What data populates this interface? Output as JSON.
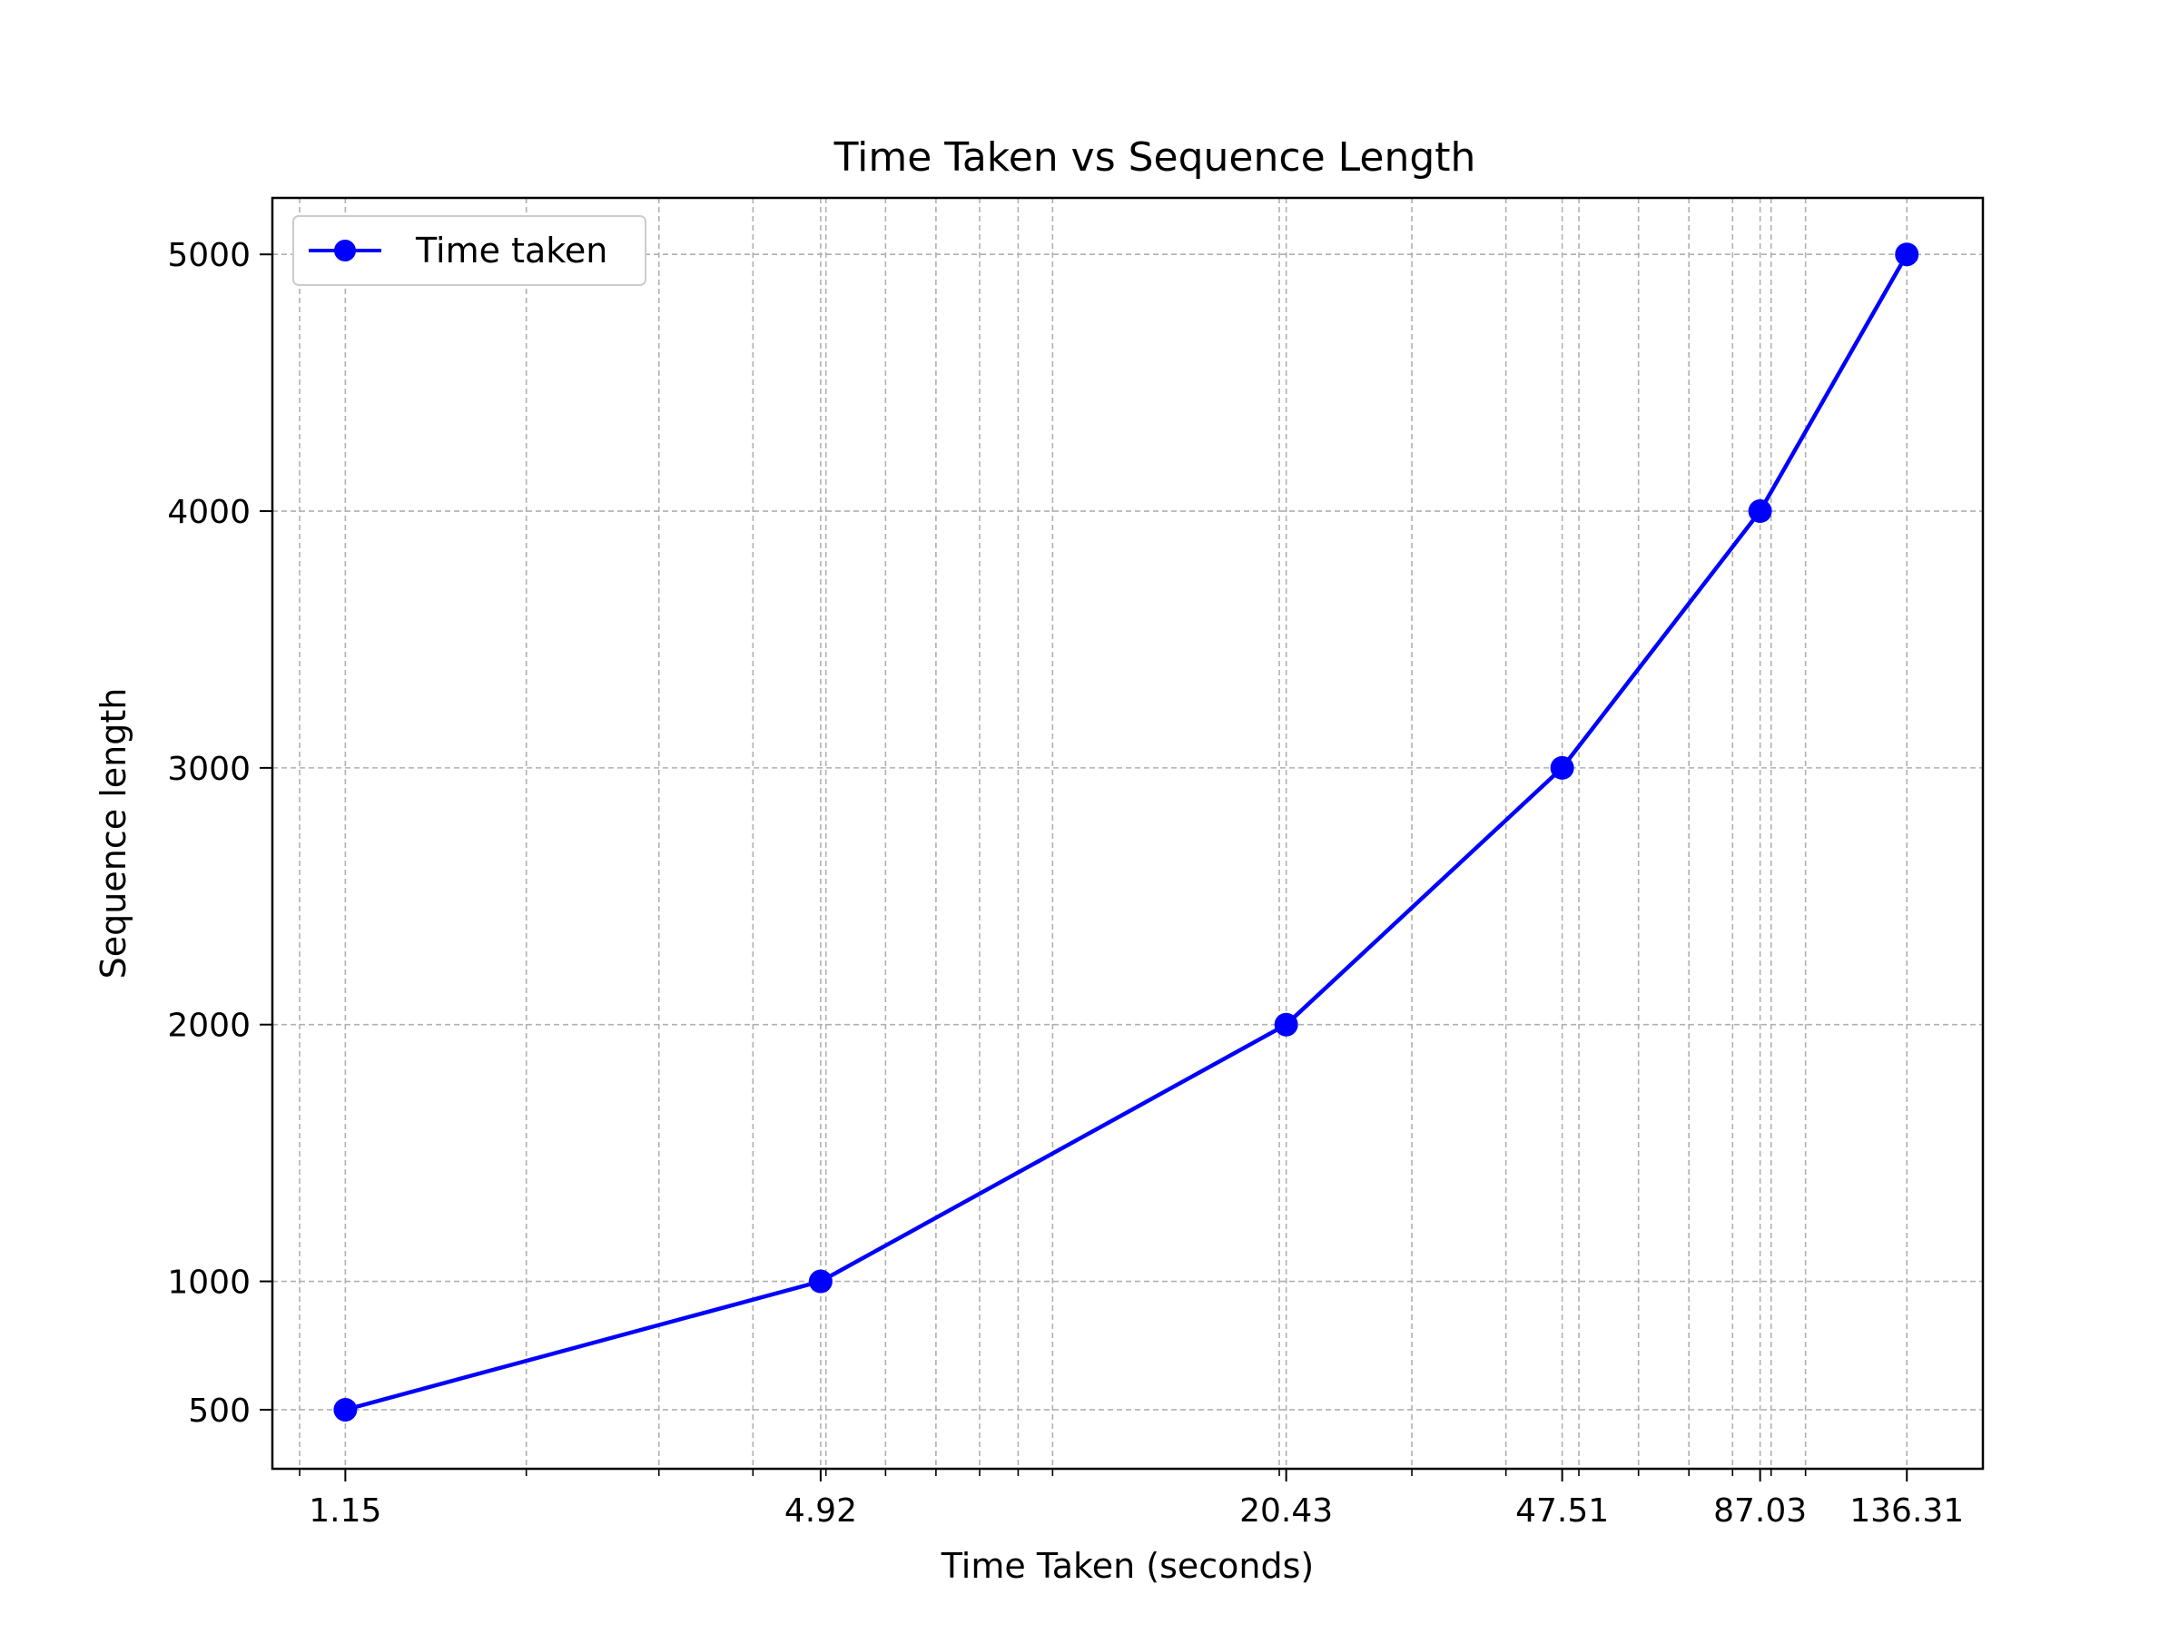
{
  "chart_data": {
    "type": "line",
    "title": "Time Taken vs Sequence Length",
    "xlabel": "Time Taken (seconds)",
    "ylabel": "Sequence length",
    "x_scale": "log",
    "x_ticks": [
      1.15,
      4.92,
      20.43,
      47.51,
      87.03,
      136.31
    ],
    "x_tick_labels": [
      "1.15",
      "4.92",
      "20.43",
      "47.51",
      "87.03",
      "136.31"
    ],
    "y_ticks": [
      500,
      1000,
      2000,
      3000,
      4000,
      5000
    ],
    "y_tick_labels": [
      "500",
      "1000",
      "2000",
      "3000",
      "4000",
      "5000"
    ],
    "xlim": [
      0.92,
      172
    ],
    "ylim": [
      270,
      5220
    ],
    "grid": true,
    "legend_position": "top-left",
    "series": [
      {
        "name": "Time taken",
        "color": "#0000ff",
        "marker": "circle",
        "x": [
          1.15,
          4.92,
          20.43,
          47.51,
          87.03,
          136.31
        ],
        "y": [
          500,
          1000,
          2000,
          3000,
          4000,
          5000
        ]
      }
    ]
  }
}
